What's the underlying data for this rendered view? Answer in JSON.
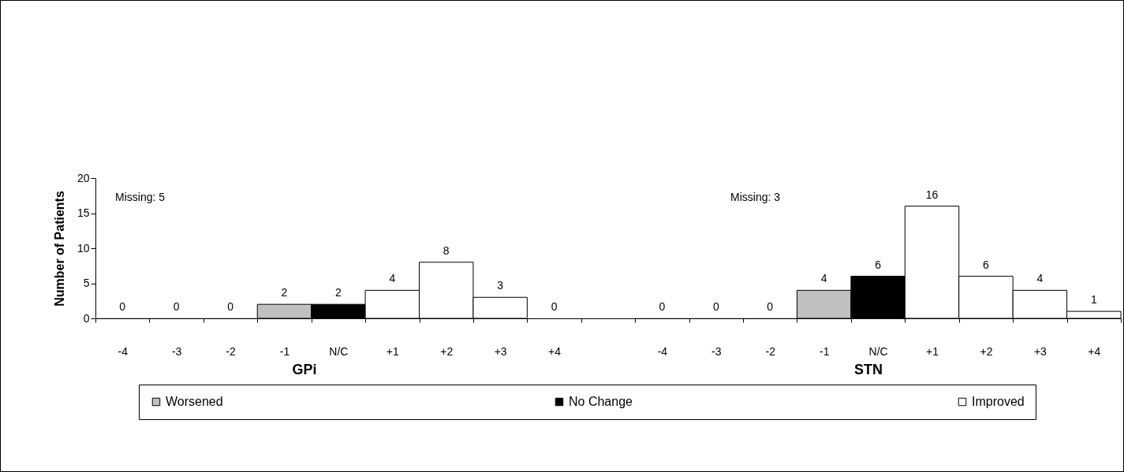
{
  "chart_data": {
    "type": "bar",
    "stacked": true,
    "ylabel": "Number of Patients",
    "categories": [
      "-4",
      "-3",
      "-2",
      "-1",
      "N/C",
      "+1",
      "+2",
      "+3",
      "+4",
      null,
      "-4",
      "-3",
      "-2",
      "-1",
      "N/C",
      "+1",
      "+2",
      "+3",
      "+4"
    ],
    "series": [
      {
        "name": "Worsened",
        "color": "#c0c0c0",
        "values": [
          0,
          0,
          0,
          2,
          null,
          null,
          null,
          null,
          null,
          null,
          0,
          0,
          0,
          4,
          null,
          null,
          null,
          null,
          null
        ]
      },
      {
        "name": "No Change",
        "color": "#000000",
        "values": [
          null,
          null,
          null,
          null,
          2,
          null,
          null,
          null,
          null,
          null,
          null,
          null,
          null,
          null,
          6,
          null,
          null,
          null,
          null
        ]
      },
      {
        "name": "Improved",
        "color": "#ffffff",
        "values": [
          null,
          null,
          null,
          null,
          null,
          4,
          8,
          3,
          0,
          null,
          null,
          null,
          null,
          null,
          null,
          16,
          6,
          4,
          1
        ]
      }
    ],
    "ylim": [
      0,
      20
    ],
    "yticks": [
      0,
      5,
      10,
      15,
      20
    ],
    "grid": false,
    "data_labels": true,
    "legend": "bottom",
    "annotations": [
      "Missing:  5",
      "Missing:  3",
      "GPi",
      "STN"
    ]
  }
}
